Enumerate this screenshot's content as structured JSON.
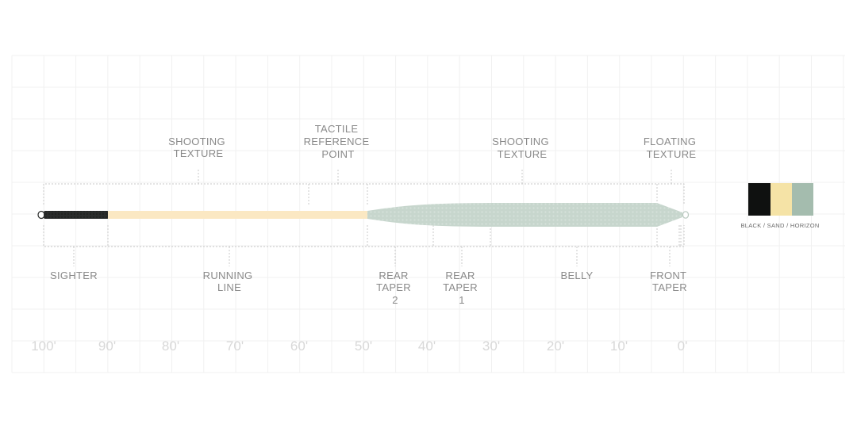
{
  "diagram": {
    "top_labels": [
      {
        "id": "shooting-texture-left",
        "lines": [
          "SHOOTING",
          "TEXTURE"
        ]
      },
      {
        "id": "tactile-reference-point",
        "lines": [
          "TACTILE",
          "REFERENCE",
          "POINT"
        ]
      },
      {
        "id": "shooting-texture-right",
        "lines": [
          "SHOOTING",
          "TEXTURE"
        ]
      },
      {
        "id": "floating-texture",
        "lines": [
          "FLOATING",
          "TEXTURE"
        ]
      }
    ],
    "bottom_labels": [
      {
        "id": "sighter",
        "lines": [
          "SIGHTER"
        ]
      },
      {
        "id": "running-line",
        "lines": [
          "RUNNING",
          "LINE"
        ]
      },
      {
        "id": "rear-taper-2",
        "lines": [
          "REAR",
          "TAPER",
          "2"
        ]
      },
      {
        "id": "rear-taper-1",
        "lines": [
          "REAR",
          "TAPER",
          "1"
        ]
      },
      {
        "id": "belly",
        "lines": [
          "BELLY"
        ]
      },
      {
        "id": "front-taper",
        "lines": [
          "FRONT",
          "TAPER"
        ]
      }
    ],
    "scale": [
      "100'",
      "90'",
      "80'",
      "70'",
      "60'",
      "50'",
      "40'",
      "30'",
      "20'",
      "10'",
      "0'"
    ],
    "swatch": {
      "label": "BLACK / SAND / HORIZON",
      "colors": [
        "#0f1110",
        "#f5e3a6",
        "#a4bcae"
      ]
    },
    "line_colors": {
      "sighter": "#2b2d2c",
      "running_line": "#fbe8c3",
      "head": "#c7d6cd"
    }
  }
}
